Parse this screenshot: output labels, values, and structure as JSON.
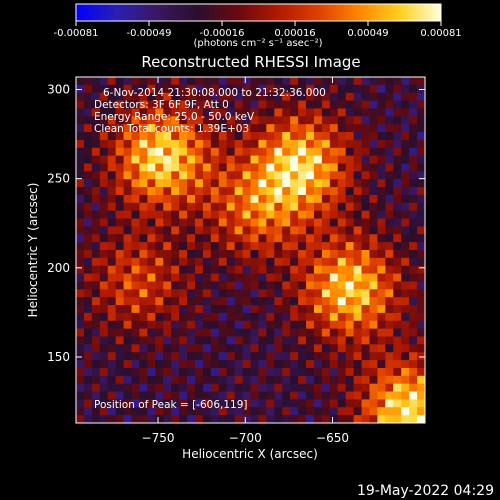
{
  "colorbar": {
    "ticks": [
      "-0.00081",
      "-0.00049",
      "-0.00016",
      "0.00016",
      "0.00049",
      "0.00081"
    ],
    "units": "(photons cm⁻² s⁻¹ asec⁻²)"
  },
  "chart_data": {
    "type": "heatmap",
    "title": "Reconstructed RHESSI Image",
    "xlabel": "Heliocentric X (arcsec)",
    "ylabel": "Heliocentric Y (arcsec)",
    "xlim": [
      -797,
      -597
    ],
    "ylim": [
      113,
      307
    ],
    "xticks": [
      {
        "value": -750,
        "label": "−750"
      },
      {
        "value": -700,
        "label": "−700"
      },
      {
        "value": -650,
        "label": "−650"
      }
    ],
    "yticks": [
      {
        "value": 150,
        "label": "150"
      },
      {
        "value": 200,
        "label": "200"
      },
      {
        "value": 250,
        "label": "250"
      },
      {
        "value": 300,
        "label": "300"
      }
    ],
    "colorscale": [
      "#0000ff",
      "#2a1fb0",
      "#3b1760",
      "#2a0e2e",
      "#6a0a10",
      "#b01a00",
      "#e04000",
      "#ff8800",
      "#ffd020",
      "#ffffe0"
    ],
    "sources": [
      {
        "x": -748,
        "y": 262,
        "intensity": 0.95
      },
      {
        "x": -668,
        "y": 258,
        "intensity": 0.9
      },
      {
        "x": -695,
        "y": 232,
        "intensity": 0.55
      },
      {
        "x": -640,
        "y": 188,
        "intensity": 0.9
      },
      {
        "x": -762,
        "y": 192,
        "intensity": 0.5
      },
      {
        "x": -606,
        "y": 119,
        "intensity": 1.0
      }
    ],
    "annotations": {
      "time": "6-Nov-2014 21:30:08.000 to 21:32:36.000",
      "detectors": "Detectors: 3F 6F 9F, Att 0",
      "energy": "Energy Range: 25.0 - 50.0 keV",
      "clean": "Clean    Total counts: 1.39E+03",
      "peak": "Position of Peak = [-606,119]"
    }
  },
  "footer_date": "19-May-2022 04:29"
}
